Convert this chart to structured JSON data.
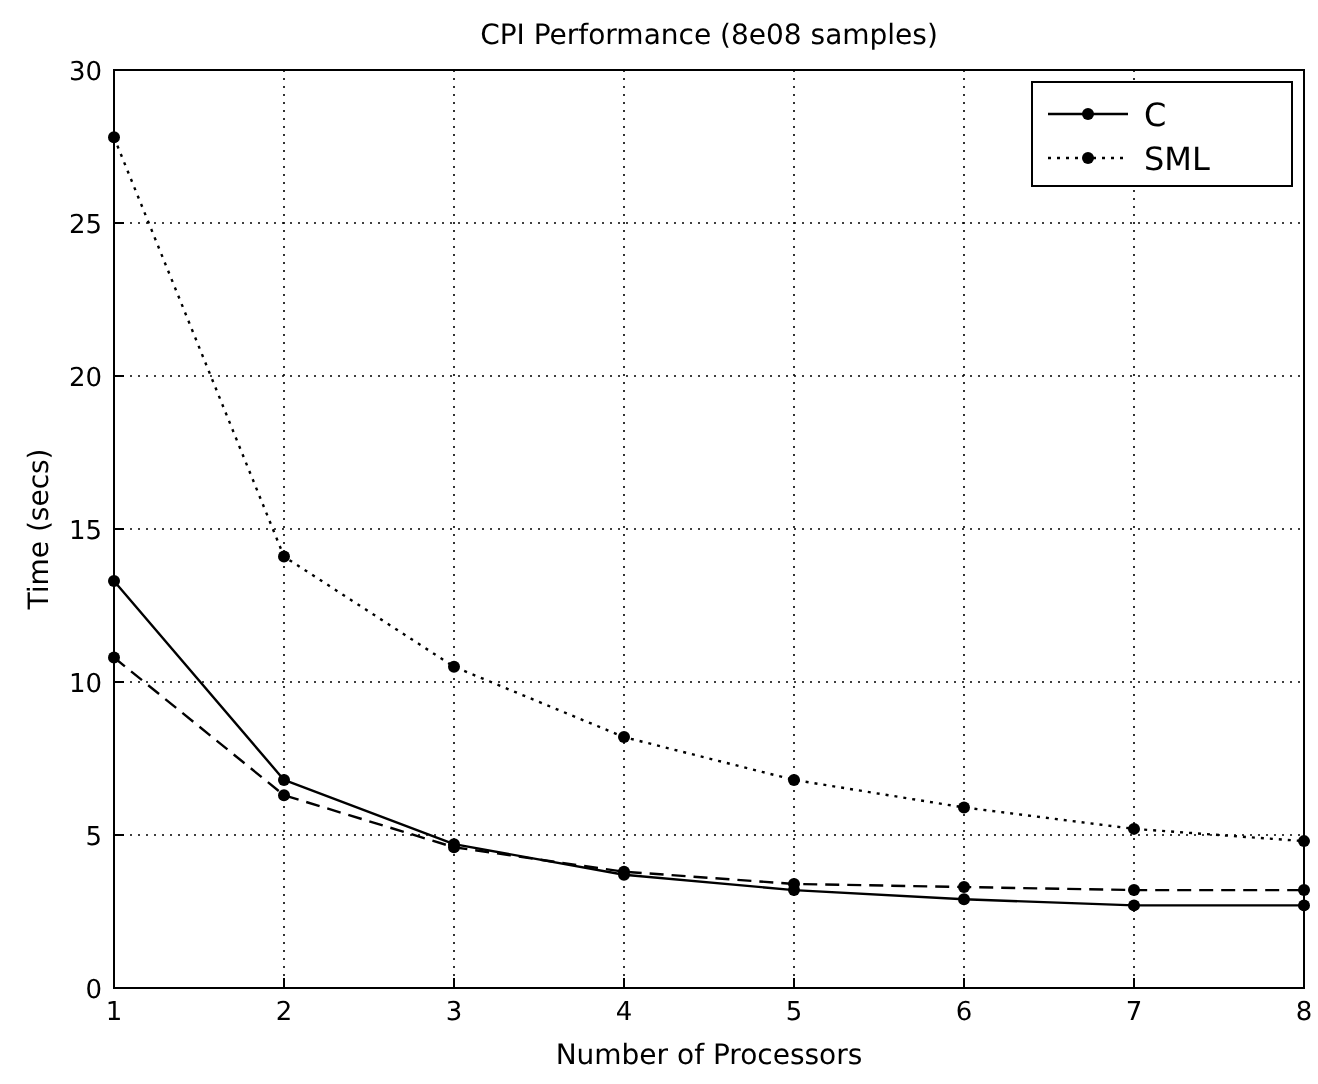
{
  "chart_data": {
    "type": "line",
    "title": "CPI Performance (8e08 samples)",
    "xlabel": "Number of Processors",
    "ylabel": "Time (secs)",
    "x": [
      1,
      2,
      3,
      4,
      5,
      6,
      7,
      8
    ],
    "series": [
      {
        "color": "#000000",
        "line_style": "dashed",
        "values": [
          10.8,
          6.3,
          4.6,
          3.8,
          3.4,
          3.3,
          3.2,
          3.2
        ]
      },
      {
        "name": "C",
        "color": "#000000",
        "line_style": "solid",
        "values": [
          13.3,
          6.8,
          4.7,
          3.7,
          3.2,
          2.9,
          2.7,
          2.7
        ]
      },
      {
        "name": "SML",
        "color": "#000000",
        "line_style": "dotted",
        "values": [
          27.8,
          14.1,
          10.5,
          8.2,
          6.8,
          5.9,
          5.2,
          4.8
        ]
      }
    ],
    "xlim": [
      1,
      8
    ],
    "xticks": [
      1,
      2,
      3,
      4,
      5,
      6,
      7,
      8
    ],
    "ylim": [
      0,
      30
    ],
    "yticks": [
      0,
      5,
      10,
      15,
      20,
      25,
      30
    ],
    "grid": true,
    "legend": "top right",
    "marker": "circle"
  }
}
